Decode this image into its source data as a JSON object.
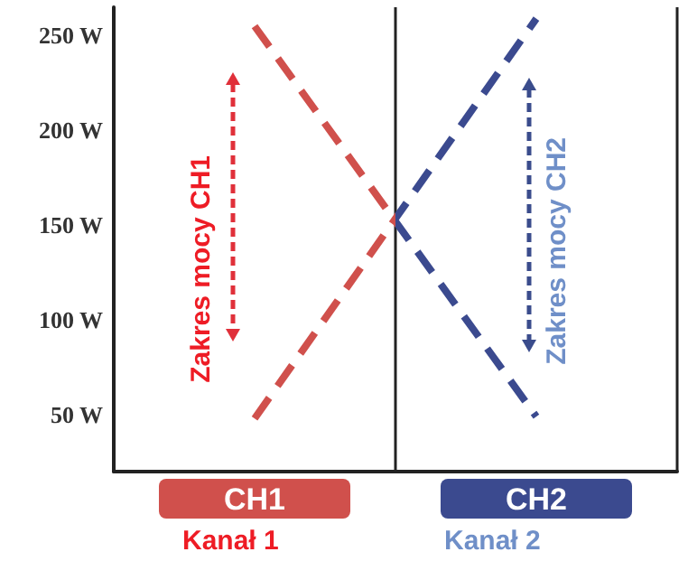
{
  "chart_data": {
    "type": "line",
    "categories": [
      "CH1",
      "CH2"
    ],
    "series": [
      {
        "colors": [
          "#d0504c",
          "#3b4a8f"
        ],
        "values": [
          255,
          49
        ]
      },
      {
        "colors": [
          "#d0504c",
          "#3b4a8f"
        ],
        "values": [
          48,
          259
        ]
      }
    ],
    "ylim": [
      20,
      265
    ],
    "yticks": [
      {
        "value": 50,
        "label": "50 W"
      },
      {
        "value": 100,
        "label": "100 W"
      },
      {
        "value": 150,
        "label": "150 W"
      },
      {
        "value": 200,
        "label": "200 W"
      },
      {
        "value": 250,
        "label": "250 W"
      }
    ],
    "grid": "x",
    "line_style": "dashed",
    "marker": "none",
    "annotations": [
      "Zakres mocy CH1",
      "Zakres mocy CH2",
      "Kanał 1",
      "Kanał 2"
    ]
  }
}
